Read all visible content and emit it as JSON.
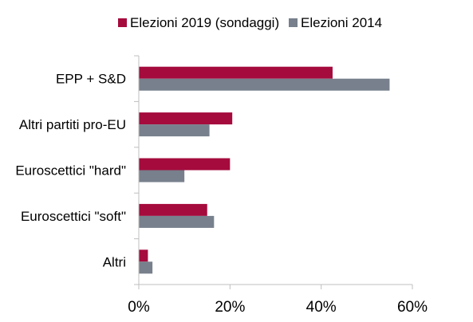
{
  "chart_data": {
    "type": "bar",
    "orientation": "horizontal",
    "categories": [
      "EPP + S&D",
      "Altri partiti pro-EU",
      "Euroscettici \"hard\"",
      "Euroscettici \"soft\"",
      "Altri"
    ],
    "series": [
      {
        "name": "Elezioni 2019 (sondaggi)",
        "values": [
          0.425,
          0.205,
          0.2,
          0.15,
          0.02
        ]
      },
      {
        "name": "Elezioni 2014",
        "values": [
          0.55,
          0.155,
          0.1,
          0.165,
          0.03
        ]
      }
    ],
    "xlim": [
      0,
      0.6
    ],
    "xticks": [
      0,
      0.2,
      0.4,
      0.6
    ],
    "xtick_labels": [
      "0%",
      "20%",
      "40%",
      "60%"
    ],
    "legend_position": "top",
    "grid": false
  },
  "colors": {
    "series_2019": "#a50b3d",
    "series_2014": "#77808c",
    "axis": "#bfbfbf"
  }
}
